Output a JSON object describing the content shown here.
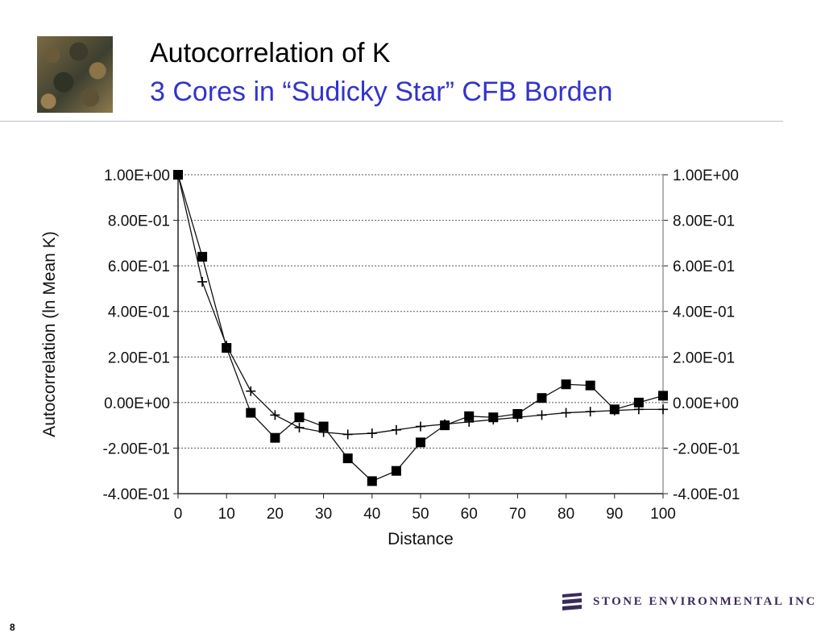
{
  "slide": {
    "title": "Autocorrelation of K",
    "subtitle": "3 Cores in “Sudicky Star” CFB Borden",
    "page_number": "8",
    "logo_text": "STONE ENVIRONMENTAL INC",
    "accent_color": "#3333cc"
  },
  "chart_data": {
    "type": "line",
    "xlabel": "Distance",
    "ylabel": "Autocorrelation (ln Mean K)",
    "xlim": [
      0,
      100
    ],
    "ylim": [
      -0.4,
      1.0
    ],
    "x_ticks": [
      0,
      10,
      20,
      30,
      40,
      50,
      60,
      70,
      80,
      90,
      100
    ],
    "y_ticks": [
      1.0,
      0.8,
      0.6,
      0.4,
      0.2,
      0.0,
      -0.2,
      -0.4
    ],
    "y_tick_labels": [
      "1.00E+00",
      "8.00E-01",
      "6.00E-01",
      "4.00E-01",
      "2.00E-01",
      "0.00E+00",
      "-2.00E-01",
      "-4.00E-01"
    ],
    "grid": true,
    "series": [
      {
        "marker": "square",
        "x": [
          0,
          5,
          10,
          15,
          20,
          25,
          30,
          35,
          40,
          45,
          50,
          55,
          60,
          65,
          70,
          75,
          80,
          85,
          90,
          95,
          100
        ],
        "y": [
          1.0,
          0.64,
          0.24,
          -0.045,
          -0.155,
          -0.065,
          -0.105,
          -0.245,
          -0.345,
          -0.3,
          -0.175,
          -0.1,
          -0.06,
          -0.065,
          -0.05,
          0.02,
          0.08,
          0.075,
          -0.03,
          0.0,
          0.03
        ]
      },
      {
        "marker": "plus",
        "x": [
          0,
          5,
          10,
          15,
          20,
          25,
          30,
          35,
          40,
          45,
          50,
          55,
          60,
          65,
          70,
          75,
          80,
          85,
          90,
          95,
          100
        ],
        "y": [
          1.0,
          0.53,
          0.25,
          0.05,
          -0.055,
          -0.11,
          -0.13,
          -0.14,
          -0.135,
          -0.12,
          -0.105,
          -0.095,
          -0.085,
          -0.075,
          -0.065,
          -0.055,
          -0.045,
          -0.04,
          -0.035,
          -0.03,
          -0.03
        ]
      }
    ]
  }
}
